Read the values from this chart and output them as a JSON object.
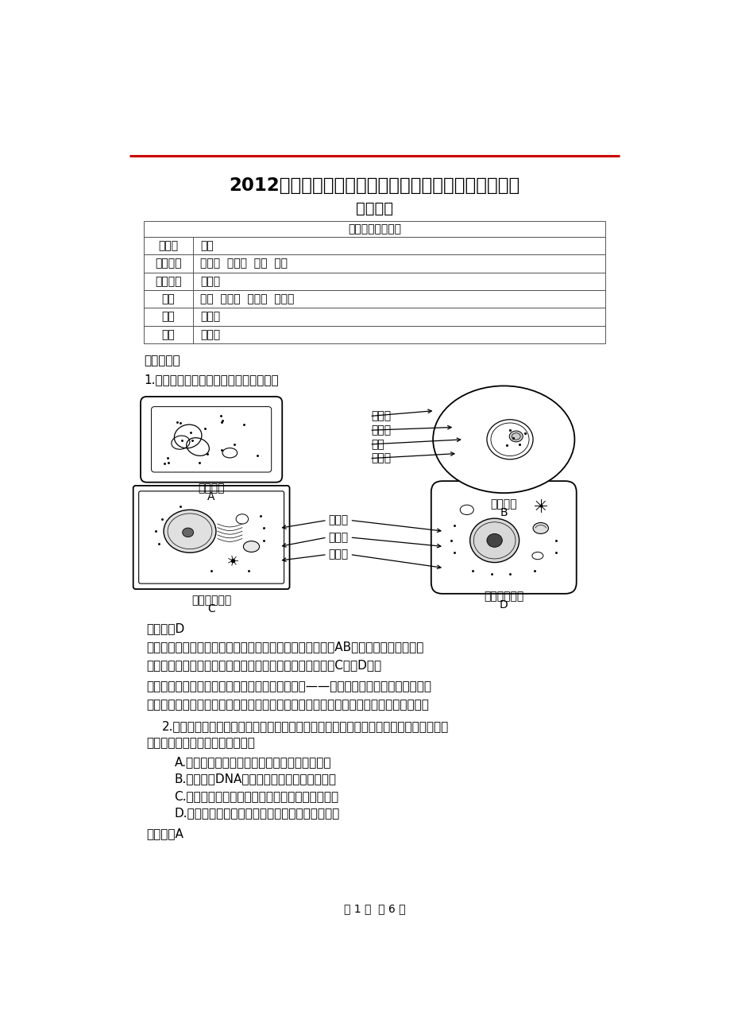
{
  "title1": "2012年普通高等学校招生全国统一考试（重庆卷）生物",
  "title2": "精品解析",
  "table_header": "本卷参与制作人员",
  "table_rows": [
    [
      "负责人",
      "洪葱"
    ],
    [
      "文本输入",
      "许建国  彭成圆  微微  洪葱"
    ],
    [
      "图片处理",
      "邱桃红"
    ],
    [
      "解析",
      "洪葱  许建国  彭成圆  付世景"
    ],
    [
      "点评",
      "邱桃红"
    ],
    [
      "审核",
      "许建国"
    ]
  ],
  "section1": "一．选择题",
  "q1": "1.下列细胞亚显微结构示意图，正确的是",
  "cell_labels_top": [
    "叶绿体",
    "核糖体",
    "拟核",
    "线粒体"
  ],
  "cell_labels_bottom": [
    "核糖体",
    "线粒体",
    "中心体"
  ],
  "cell_name_A1": "细菌细胞",
  "cell_name_A2": "A",
  "cell_name_B1": "蓝藻细胞",
  "cell_name_B2": "B",
  "cell_name_C1": "水稻叶肉细胞",
  "cell_name_C2": "C",
  "cell_name_D1": "小鼠肝脏细胞",
  "cell_name_D2": "D",
  "answer1_label": "【答案】",
  "answer1_val": "D",
  "analysis1_label": "【解析】",
  "analysis1_line1": "细菌和蓝藻属于原核生物，没有叶绿体和线粒体，AB错；中心体存在于低等",
  "analysis1_line2": "植物和动物细胞中，水稻是高等植物，不存在中心体，所以C错，D正确",
  "review1_label": "【试题点评】",
  "review1_line1": "该题涉及的知识点是生命的结构基础——细胞的基本结构。考查学生对基",
  "review1_line2": "础知识的理解性记忆，细节知识点的准确记忆。难度不大，但知识点很细，需准确记忆。",
  "q2_intro": "2.针对耐药菌日益增多的情况，利用噬菌体作为一种新的抗菌治疗手段的研究备受关注，",
  "q2_intro2": "下列有关噬菌体的叙述，正确的是",
  "q2_A": "A.利用宿主菌的氨基酸合成子代噬菌体的蛋白质",
  "q2_B": "B.以宿主菌DNA为模板合成子代噬菌体的核酸",
  "q2_C": "C.外壳抑制了宿主菌的蛋白质合成，使该细菌死亡",
  "q2_D": "D.能在宿主菌内以二分裂方式增殖，使该细菌裂解",
  "answer2_label": "【答案】",
  "answer2_val": "A",
  "footer": "第 1 页  共 6 页",
  "bg_color": "#ffffff",
  "text_color": "#000000",
  "red_color": "#cc0000"
}
